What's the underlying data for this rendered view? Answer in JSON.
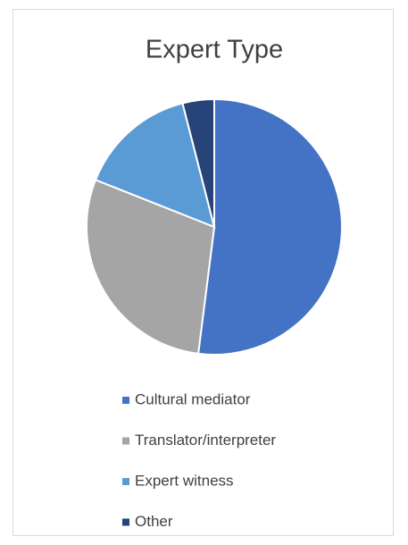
{
  "chart_data": {
    "type": "pie",
    "title": "Expert Type",
    "categories": [
      "Cultural mediator",
      "Translator/interpreter",
      "Expert witness",
      "Other"
    ],
    "values": [
      52,
      29,
      15,
      4
    ],
    "colors": [
      "#4472c4",
      "#a5a5a5",
      "#5b9bd5",
      "#264478"
    ],
    "legend": "bottom"
  }
}
